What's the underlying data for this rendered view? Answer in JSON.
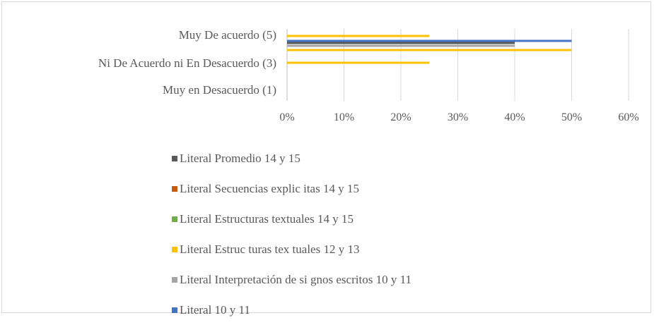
{
  "chart_data": {
    "type": "bar",
    "orientation": "horizontal",
    "categories": [
      "Muy De acuerdo (5)",
      "Ni De Acuerdo ni En Desacuerdo (3)",
      "Muy en Desacuerdo (1)"
    ],
    "series": [
      {
        "name": "Literal 10 y 11",
        "color": "#4472c4",
        "values": [
          50,
          0,
          0
        ]
      },
      {
        "name": "Literal Interpretación de signos escritos 10 y 11",
        "color": "#a5a5a5",
        "values": [
          40,
          0,
          0
        ]
      },
      {
        "name": "Literal Estructuras textuales 12 y 13",
        "color": "#ffc000",
        "values": [
          50,
          0,
          0
        ]
      },
      {
        "name": "Literal Estructuras textuales 14 y 15",
        "color": "#70ad47",
        "values": [
          0,
          0,
          0
        ]
      },
      {
        "name": "Literal Secuencias explicitas 14 y 15",
        "color": "#c55a11",
        "values": [
          0,
          0,
          0
        ]
      },
      {
        "name": "Literal Promedio 14 y 15",
        "color": "#595959",
        "values": [
          40,
          0,
          0
        ]
      }
    ],
    "extra_bars": [
      {
        "category": "Muy De acuerdo (5)",
        "color": "#ffc000",
        "value": 25
      },
      {
        "category": "Ni De Acuerdo ni En Desacuerdo (3)",
        "color": "#ffc000",
        "value": 25
      }
    ],
    "x_ticks": [
      "0%",
      "10%",
      "20%",
      "30%",
      "40%",
      "50%",
      "60%"
    ],
    "xlim": [
      0,
      60
    ],
    "grid": true,
    "legend_position": "bottom",
    "legend_order": [
      "Literal Promedio 14 y 15",
      "Literal Secuencias explicitas 14 y 15",
      "Literal Estructuras textuales 14 y 15",
      "Literal Estructuras textuales 12 y 13",
      "Literal Interpretación de signos escritos 10 y 11",
      "Literal 10 y 11"
    ]
  },
  "legend_labels": {
    "promedio": "Literal Promedio 14 y 15",
    "secuencias": "Literal Secuencias explic itas 14 y 15",
    "estructuras_14": "Literal Estructuras textuales 14 y 15",
    "estructuras_12": "Literal Estruc turas tex tuales 12 y 13",
    "interpretacion": "Literal Interpretación de si gnos escritos 10 y 11",
    "literal_10": "Literal 10 y 11"
  },
  "colors": {
    "promedio": "#595959",
    "secuencias": "#c55a11",
    "estructuras_14": "#70ad47",
    "estructuras_12": "#ffc000",
    "interpretacion": "#a5a5a5",
    "literal_10": "#4472c4"
  }
}
